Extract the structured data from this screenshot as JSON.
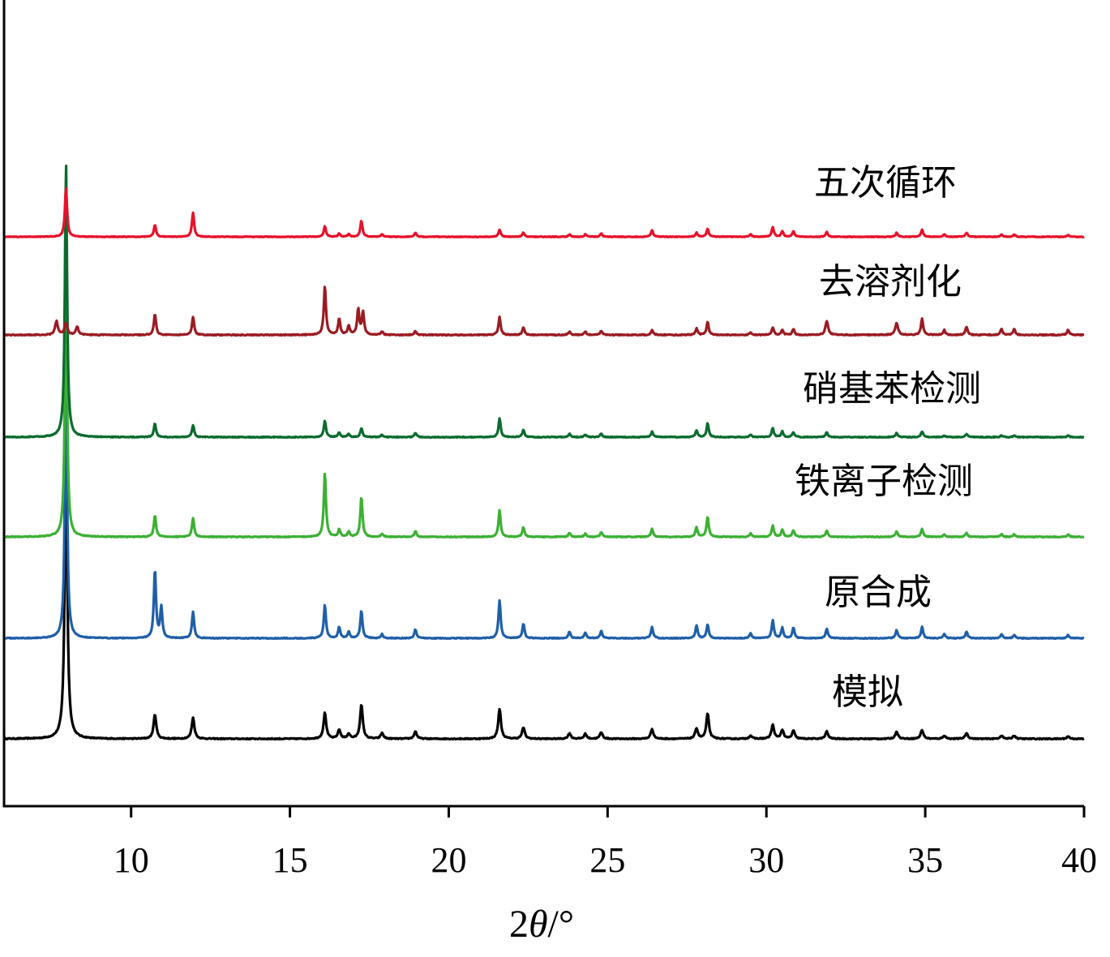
{
  "chart_data": {
    "type": "line",
    "title": "",
    "xlabel_main": "2",
    "xlabel_theta": "θ",
    "xlabel_unit": "/°",
    "ylabel": "",
    "xlim": [
      6,
      40
    ],
    "x_ticks": [
      10,
      15,
      20,
      25,
      30,
      35,
      40
    ],
    "x_tick_labels": [
      "10",
      "15",
      "20",
      "25",
      "30",
      "35",
      "40"
    ],
    "grid": false,
    "legend": "labels placed right of each curve",
    "series": [
      {
        "name": "模拟",
        "color": "#000000",
        "baseline": 0,
        "noise": 0.6,
        "peaks": [
          [
            7.95,
            340,
            0.05
          ],
          [
            10.75,
            30,
            0.05
          ],
          [
            11.95,
            26,
            0.05
          ],
          [
            16.1,
            32,
            0.05
          ],
          [
            16.55,
            11,
            0.05
          ],
          [
            16.85,
            6,
            0.05
          ],
          [
            17.25,
            42,
            0.05
          ],
          [
            17.9,
            7,
            0.05
          ],
          [
            18.95,
            9,
            0.05
          ],
          [
            21.6,
            37,
            0.05
          ],
          [
            22.35,
            14,
            0.05
          ],
          [
            23.8,
            7,
            0.05
          ],
          [
            24.3,
            6,
            0.05
          ],
          [
            24.8,
            8,
            0.05
          ],
          [
            26.4,
            12,
            0.05
          ],
          [
            27.8,
            13,
            0.05
          ],
          [
            28.15,
            31,
            0.05
          ],
          [
            29.5,
            4,
            0.05
          ],
          [
            30.2,
            17,
            0.05
          ],
          [
            30.5,
            11,
            0.05
          ],
          [
            30.85,
            10,
            0.05
          ],
          [
            31.9,
            9,
            0.05
          ],
          [
            34.1,
            9,
            0.05
          ],
          [
            34.9,
            11,
            0.05
          ],
          [
            35.6,
            4,
            0.05
          ],
          [
            36.3,
            7,
            0.05
          ],
          [
            37.4,
            4,
            0.05
          ],
          [
            37.8,
            4,
            0.05
          ],
          [
            39.5,
            3,
            0.05
          ]
        ]
      },
      {
        "name": "原合成",
        "color": "#1f5fa8",
        "baseline": 0,
        "noise": 0.5,
        "peaks": [
          [
            7.95,
            345,
            0.04
          ],
          [
            10.75,
            85,
            0.04
          ],
          [
            10.95,
            38,
            0.04
          ],
          [
            11.95,
            33,
            0.04
          ],
          [
            16.1,
            41,
            0.04
          ],
          [
            16.55,
            14,
            0.04
          ],
          [
            16.85,
            8,
            0.04
          ],
          [
            17.25,
            34,
            0.04
          ],
          [
            17.9,
            5,
            0.04
          ],
          [
            18.95,
            11,
            0.04
          ],
          [
            21.6,
            47,
            0.04
          ],
          [
            22.35,
            18,
            0.04
          ],
          [
            23.8,
            8,
            0.04
          ],
          [
            24.3,
            7,
            0.04
          ],
          [
            24.8,
            9,
            0.04
          ],
          [
            26.4,
            14,
            0.04
          ],
          [
            27.8,
            16,
            0.04
          ],
          [
            28.15,
            17,
            0.04
          ],
          [
            29.5,
            6,
            0.04
          ],
          [
            30.2,
            22,
            0.04
          ],
          [
            30.5,
            13,
            0.04
          ],
          [
            30.85,
            13,
            0.04
          ],
          [
            31.9,
            12,
            0.04
          ],
          [
            34.1,
            10,
            0.04
          ],
          [
            34.9,
            14,
            0.04
          ],
          [
            35.6,
            5,
            0.04
          ],
          [
            36.3,
            8,
            0.04
          ],
          [
            37.4,
            5,
            0.04
          ],
          [
            37.8,
            4,
            0.04
          ],
          [
            39.5,
            4,
            0.04
          ]
        ]
      },
      {
        "name": "铁离子检测",
        "color": "#3cb034",
        "baseline": 0,
        "noise": 0.5,
        "peaks": [
          [
            7.95,
            340,
            0.04
          ],
          [
            10.75,
            27,
            0.04
          ],
          [
            11.95,
            23,
            0.04
          ],
          [
            16.1,
            79,
            0.04
          ],
          [
            16.55,
            9,
            0.04
          ],
          [
            16.85,
            6,
            0.04
          ],
          [
            17.25,
            50,
            0.04
          ],
          [
            17.9,
            4,
            0.04
          ],
          [
            18.95,
            7,
            0.04
          ],
          [
            21.6,
            33,
            0.04
          ],
          [
            22.35,
            12,
            0.04
          ],
          [
            23.8,
            5,
            0.04
          ],
          [
            24.3,
            4,
            0.04
          ],
          [
            24.8,
            6,
            0.04
          ],
          [
            26.4,
            10,
            0.04
          ],
          [
            27.8,
            12,
            0.04
          ],
          [
            28.15,
            25,
            0.04
          ],
          [
            29.5,
            4,
            0.04
          ],
          [
            30.2,
            14,
            0.04
          ],
          [
            30.5,
            9,
            0.04
          ],
          [
            30.85,
            8,
            0.04
          ],
          [
            31.9,
            8,
            0.04
          ],
          [
            34.1,
            7,
            0.04
          ],
          [
            34.9,
            10,
            0.04
          ],
          [
            35.6,
            3,
            0.04
          ],
          [
            36.3,
            5,
            0.04
          ],
          [
            37.4,
            3,
            0.04
          ],
          [
            37.8,
            3,
            0.04
          ],
          [
            39.5,
            3,
            0.04
          ]
        ]
      },
      {
        "name": "硝基苯检测",
        "color": "#0b6b2e",
        "baseline": 0,
        "noise": 0.5,
        "peaks": [
          [
            7.95,
            340,
            0.04
          ],
          [
            10.75,
            17,
            0.04
          ],
          [
            11.95,
            15,
            0.04
          ],
          [
            16.1,
            20,
            0.04
          ],
          [
            16.55,
            6,
            0.04
          ],
          [
            16.85,
            4,
            0.04
          ],
          [
            17.25,
            11,
            0.04
          ],
          [
            17.9,
            3,
            0.04
          ],
          [
            18.95,
            5,
            0.04
          ],
          [
            21.6,
            23,
            0.04
          ],
          [
            22.35,
            9,
            0.04
          ],
          [
            23.8,
            4,
            0.04
          ],
          [
            24.3,
            3,
            0.04
          ],
          [
            24.8,
            4,
            0.04
          ],
          [
            26.4,
            7,
            0.04
          ],
          [
            27.8,
            8,
            0.04
          ],
          [
            28.15,
            17,
            0.04
          ],
          [
            29.5,
            3,
            0.04
          ],
          [
            30.2,
            11,
            0.04
          ],
          [
            30.5,
            7,
            0.04
          ],
          [
            30.85,
            6,
            0.04
          ],
          [
            31.9,
            6,
            0.04
          ],
          [
            34.1,
            5,
            0.04
          ],
          [
            34.9,
            7,
            0.04
          ],
          [
            35.6,
            2,
            0.04
          ],
          [
            36.3,
            4,
            0.04
          ],
          [
            37.4,
            2,
            0.04
          ],
          [
            37.8,
            2,
            0.04
          ],
          [
            39.5,
            2,
            0.04
          ]
        ]
      },
      {
        "name": "去溶剂化",
        "color": "#9b1b22",
        "baseline": 0,
        "noise": 0.6,
        "peaks": [
          [
            7.65,
            17,
            0.05
          ],
          [
            7.95,
            15,
            0.05
          ],
          [
            8.3,
            10,
            0.05
          ],
          [
            10.75,
            26,
            0.04
          ],
          [
            11.95,
            22,
            0.04
          ],
          [
            16.1,
            60,
            0.04
          ],
          [
            16.55,
            20,
            0.04
          ],
          [
            16.85,
            11,
            0.04
          ],
          [
            17.15,
            32,
            0.04
          ],
          [
            17.3,
            28,
            0.04
          ],
          [
            17.9,
            4,
            0.04
          ],
          [
            18.95,
            5,
            0.04
          ],
          [
            21.6,
            22,
            0.04
          ],
          [
            22.35,
            9,
            0.04
          ],
          [
            23.8,
            4,
            0.04
          ],
          [
            24.3,
            4,
            0.04
          ],
          [
            24.8,
            5,
            0.04
          ],
          [
            26.4,
            6,
            0.04
          ],
          [
            27.8,
            8,
            0.04
          ],
          [
            28.15,
            16,
            0.04
          ],
          [
            29.5,
            3,
            0.04
          ],
          [
            30.2,
            9,
            0.04
          ],
          [
            30.5,
            6,
            0.04
          ],
          [
            30.85,
            7,
            0.04
          ],
          [
            31.9,
            17,
            0.05
          ],
          [
            34.1,
            15,
            0.05
          ],
          [
            34.9,
            20,
            0.04
          ],
          [
            35.6,
            6,
            0.04
          ],
          [
            36.3,
            10,
            0.04
          ],
          [
            37.4,
            7,
            0.04
          ],
          [
            37.8,
            7,
            0.04
          ],
          [
            39.5,
            6,
            0.04
          ]
        ]
      },
      {
        "name": "五次循环",
        "color": "#e8102a",
        "baseline": 0,
        "noise": 0.4,
        "peaks": [
          [
            7.95,
            60,
            0.04
          ],
          [
            10.75,
            15,
            0.04
          ],
          [
            11.95,
            30,
            0.04
          ],
          [
            16.1,
            13,
            0.04
          ],
          [
            16.55,
            4,
            0.04
          ],
          [
            16.85,
            3,
            0.04
          ],
          [
            17.25,
            20,
            0.04
          ],
          [
            17.9,
            3,
            0.04
          ],
          [
            18.95,
            5,
            0.04
          ],
          [
            21.6,
            9,
            0.04
          ],
          [
            22.35,
            5,
            0.04
          ],
          [
            23.8,
            3,
            0.04
          ],
          [
            24.3,
            3,
            0.04
          ],
          [
            24.8,
            4,
            0.04
          ],
          [
            26.4,
            8,
            0.04
          ],
          [
            27.8,
            5,
            0.04
          ],
          [
            28.15,
            10,
            0.04
          ],
          [
            29.5,
            3,
            0.04
          ],
          [
            30.2,
            12,
            0.04
          ],
          [
            30.5,
            7,
            0.04
          ],
          [
            30.85,
            7,
            0.04
          ],
          [
            31.9,
            6,
            0.04
          ],
          [
            34.1,
            5,
            0.04
          ],
          [
            34.9,
            9,
            0.04
          ],
          [
            35.6,
            3,
            0.04
          ],
          [
            36.3,
            5,
            0.04
          ],
          [
            37.4,
            3,
            0.04
          ],
          [
            37.8,
            3,
            0.04
          ],
          [
            39.5,
            2,
            0.04
          ]
        ]
      }
    ]
  }
}
